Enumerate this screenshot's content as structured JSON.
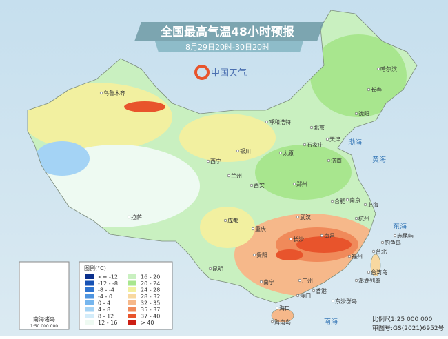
{
  "header": {
    "title": "全国最高气温48小时预报",
    "subtitle": "8月29日20时-30日20时",
    "logo": "中国天气"
  },
  "legend": {
    "title": "图例(°C)",
    "items": [
      {
        "label": "<= -12",
        "color": "#0a2f8c"
      },
      {
        "label": "-12 - -8",
        "color": "#1651b4"
      },
      {
        "label": "-8 - -4",
        "color": "#2f74d0"
      },
      {
        "label": "-4 - 0",
        "color": "#4f95e0"
      },
      {
        "label": "0 - 4",
        "color": "#76b6ee"
      },
      {
        "label": "4 - 8",
        "color": "#a4d3f5"
      },
      {
        "label": "8 - 12",
        "color": "#d3ecfa"
      },
      {
        "label": "12 - 16",
        "color": "#eefaf2"
      },
      {
        "label": "16 - 20",
        "color": "#c9f0c0"
      },
      {
        "label": "20 - 24",
        "color": "#a8e68e"
      },
      {
        "label": "24 - 28",
        "color": "#f2f0a0"
      },
      {
        "label": "28 - 32",
        "color": "#f8d8a0"
      },
      {
        "label": "32 - 35",
        "color": "#f6b88a"
      },
      {
        "label": "35 - 37",
        "color": "#f08a5a"
      },
      {
        "label": "37 - 40",
        "color": "#e8542c"
      },
      {
        "label": "> 40",
        "color": "#cc1e14"
      }
    ]
  },
  "cities": [
    "乌鲁木齐",
    "拉萨",
    "西宁",
    "兰州",
    "银川",
    "呼和浩特",
    "北京",
    "天津",
    "石家庄",
    "太原",
    "济南",
    "西安",
    "郑州",
    "成都",
    "重庆",
    "武汉",
    "合肥",
    "南京",
    "上海",
    "杭州",
    "长沙",
    "南昌",
    "福州",
    "台北",
    "贵阳",
    "昆明",
    "南宁",
    "广州",
    "香港",
    "澳门",
    "海口",
    "沈阳",
    "长春",
    "哈尔滨",
    "台湾岛",
    "钓鱼岛",
    "赤尾屿",
    "澎湖列岛",
    "东沙群岛",
    "海南岛"
  ],
  "seas": [
    "渤海",
    "黄海",
    "东海",
    "南海"
  ],
  "inset": {
    "title": "南海诸岛",
    "scale": "1:50 000 000"
  },
  "footer": {
    "scale": "比例尺1:25 000 000",
    "approval": "审图号:GS(2021)6952号"
  }
}
